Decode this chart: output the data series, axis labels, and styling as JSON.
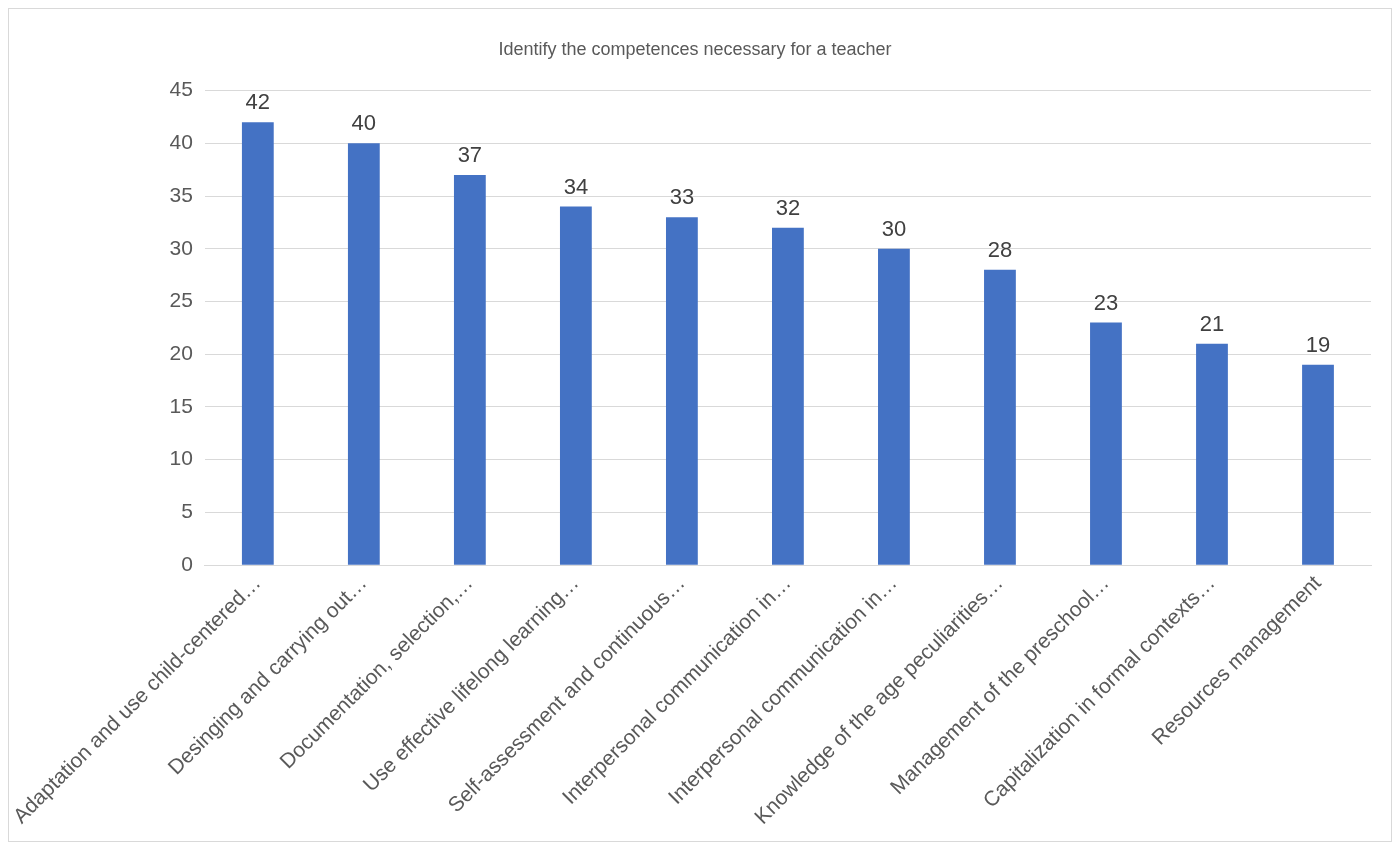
{
  "chart_data": {
    "type": "bar",
    "title": "Identify the competences necessary for a teacher",
    "categories": [
      "Adaptation and use child-centered…",
      "Desinging and carrying out…",
      "Documentation, selection,…",
      "Use effective lifelong learning…",
      "Self-assessment and continuous…",
      "Interpersonal communication in…",
      "Interpersonal communication in…",
      "Knowledge of the age peculiarities…",
      "Management of the preschool…",
      "Capitalization in formal contexts…",
      "Resources management"
    ],
    "values": [
      42,
      40,
      37,
      34,
      33,
      32,
      30,
      28,
      23,
      21,
      19
    ],
    "color": "#4472c4",
    "ylim": [
      0,
      45
    ],
    "yticks": [
      0,
      5,
      10,
      15,
      20,
      25,
      30,
      35,
      40,
      45
    ],
    "grid": "y",
    "data_labels": true,
    "legend": false
  }
}
